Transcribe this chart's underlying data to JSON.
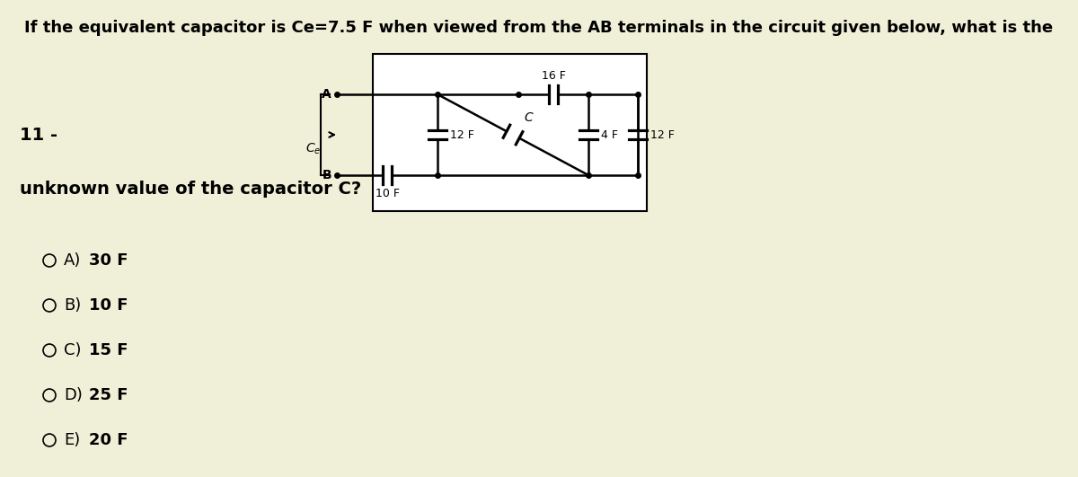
{
  "bg_color": "#f0f0d8",
  "title_text": "If the equivalent capacitor is Ce=7.5 F when viewed from the AB terminals in the circuit given below, what is the",
  "title_fontsize": 13,
  "question_number": "11 -",
  "subtitle_text": "unknown value of the capacitor C?",
  "subtitle_fontsize": 14,
  "options": [
    {
      "label": "A)",
      "value": "30 F"
    },
    {
      "label": "B)",
      "value": "10 F"
    },
    {
      "label": "C)",
      "value": "15 F"
    },
    {
      "label": "D)",
      "value": "25 F"
    },
    {
      "label": "E)",
      "value": "20 F"
    }
  ],
  "option_fontsize": 13,
  "bg_hex": "#f0f0d8"
}
